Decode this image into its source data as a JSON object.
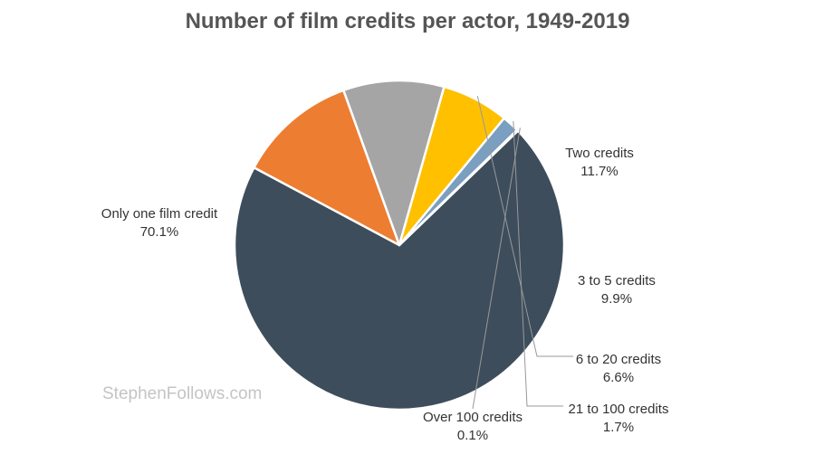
{
  "chart_data": {
    "type": "pie",
    "title": "Number of film credits per actor, 1949-2019",
    "categories": [
      "Only one film credit",
      "Two credits",
      "3 to 5 credits",
      "6 to 20 credits",
      "21 to 100 credits",
      "Over 100 credits"
    ],
    "values": [
      70.1,
      11.7,
      9.9,
      6.6,
      1.7,
      0.1
    ],
    "value_labels": [
      "70.1%",
      "11.7%",
      "9.9%",
      "6.6%",
      "1.7%",
      "0.1%"
    ],
    "unit": "%",
    "colors": [
      "#3d4d5c",
      "#ed7d31",
      "#a5a5a5",
      "#ffc000",
      "#7a9fc0",
      "#3d4d5c"
    ],
    "legend": "none",
    "watermark": "StephenFollows.com"
  }
}
